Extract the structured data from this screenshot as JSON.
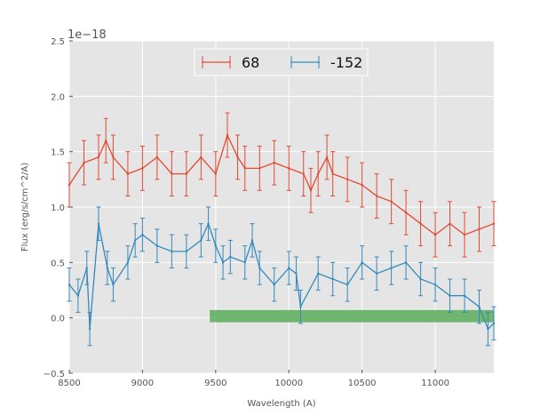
{
  "chart_data": {
    "type": "line",
    "title": "",
    "xlabel": "Wavelength (A)",
    "ylabel": "Flux (erg/s/cm^2/A)",
    "offset_text": "1e−18",
    "xlim": [
      8500,
      11400
    ],
    "ylim": [
      -0.5,
      2.5
    ],
    "xticks": [
      8500,
      9000,
      9500,
      10000,
      10500,
      11000
    ],
    "xtick_labels": [
      "8500",
      "9000",
      "9500",
      "10000",
      "10500",
      "11000"
    ],
    "yticks": [
      -0.5,
      0.0,
      0.5,
      1.0,
      1.5,
      2.0,
      2.5
    ],
    "ytick_labels": [
      "−0.5",
      "0.0",
      "0.5",
      "1.0",
      "1.5",
      "2.0",
      "2.5"
    ],
    "grid": true,
    "legend_position": "top-center",
    "series": [
      {
        "name": "68",
        "color": "#e24a33",
        "x": [
          8500,
          8600,
          8700,
          8750,
          8800,
          8900,
          9000,
          9100,
          9200,
          9300,
          9400,
          9500,
          9580,
          9650,
          9700,
          9800,
          9900,
          10000,
          10100,
          10150,
          10200,
          10260,
          10300,
          10400,
          10500,
          10600,
          10700,
          10800,
          10900,
          11000,
          11100,
          11200,
          11300,
          11400
        ],
        "y": [
          1.2,
          1.4,
          1.45,
          1.6,
          1.45,
          1.3,
          1.35,
          1.45,
          1.3,
          1.3,
          1.45,
          1.3,
          1.65,
          1.45,
          1.35,
          1.35,
          1.4,
          1.35,
          1.3,
          1.15,
          1.3,
          1.45,
          1.3,
          1.25,
          1.2,
          1.1,
          1.05,
          0.95,
          0.85,
          0.75,
          0.85,
          0.75,
          0.8,
          0.85
        ],
        "yerr": 0.2
      },
      {
        "name": "-152",
        "color": "#348abd",
        "x": [
          8500,
          8560,
          8620,
          8640,
          8700,
          8760,
          8800,
          8900,
          8950,
          9000,
          9100,
          9200,
          9300,
          9400,
          9450,
          9500,
          9550,
          9600,
          9700,
          9750,
          9800,
          9900,
          10000,
          10050,
          10080,
          10200,
          10300,
          10400,
          10500,
          10600,
          10700,
          10800,
          10900,
          11000,
          11100,
          11200,
          11300,
          11360,
          11400
        ],
        "y": [
          0.3,
          0.2,
          0.45,
          -0.1,
          0.85,
          0.45,
          0.3,
          0.5,
          0.7,
          0.75,
          0.65,
          0.6,
          0.6,
          0.7,
          0.85,
          0.65,
          0.5,
          0.55,
          0.5,
          0.7,
          0.45,
          0.3,
          0.45,
          0.4,
          0.1,
          0.4,
          0.35,
          0.3,
          0.5,
          0.4,
          0.45,
          0.5,
          0.35,
          0.3,
          0.2,
          0.2,
          0.1,
          -0.1,
          -0.05
        ],
        "yerr": 0.15
      }
    ],
    "shaded_band": {
      "x0": 9460,
      "x1": 11400,
      "y0": -0.04,
      "y1": 0.07,
      "color": "#5bab5b"
    }
  }
}
